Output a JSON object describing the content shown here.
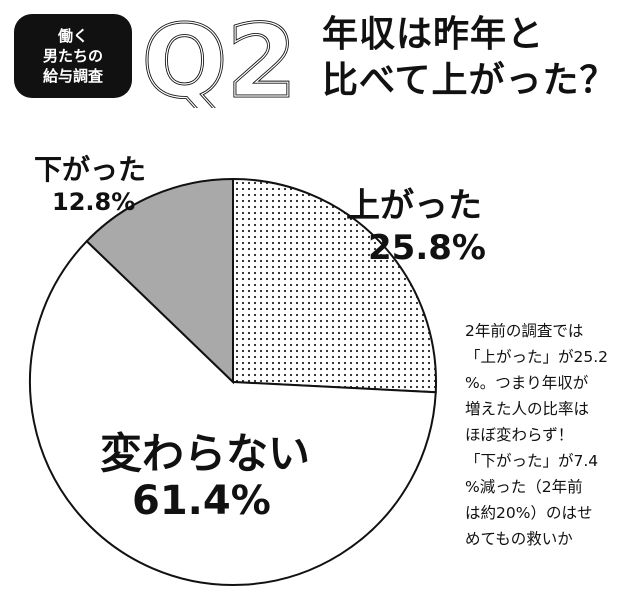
{
  "badge": {
    "lines": [
      "働く",
      "男たちの",
      "給与調査"
    ]
  },
  "question_number": "Q2",
  "title_lines": [
    "年収は昨年と",
    "比べて上がった？"
  ],
  "chart_data": {
    "type": "pie",
    "title": "年収は昨年と比べて上がった？",
    "slices": [
      {
        "label": "上がった",
        "value": 25.8,
        "display": "25.8%",
        "fill": "dots"
      },
      {
        "label": "変わらない",
        "value": 61.4,
        "display": "61.4%",
        "fill": "#ffffff"
      },
      {
        "label": "下がった",
        "value": 12.8,
        "display": "12.8%",
        "fill": "#a9a9a9"
      }
    ],
    "start": "12 o'clock",
    "direction": "clockwise"
  },
  "note_lines": [
    "2年前の調査では",
    "「上がった」が25.2",
    "%。つまり年収が",
    "増えた人の比率は",
    "ほぼ変わらず！",
    "「下がった」が7.4",
    "%減った（2年前",
    "は約20%）のはせ",
    "めてもの救いか"
  ]
}
